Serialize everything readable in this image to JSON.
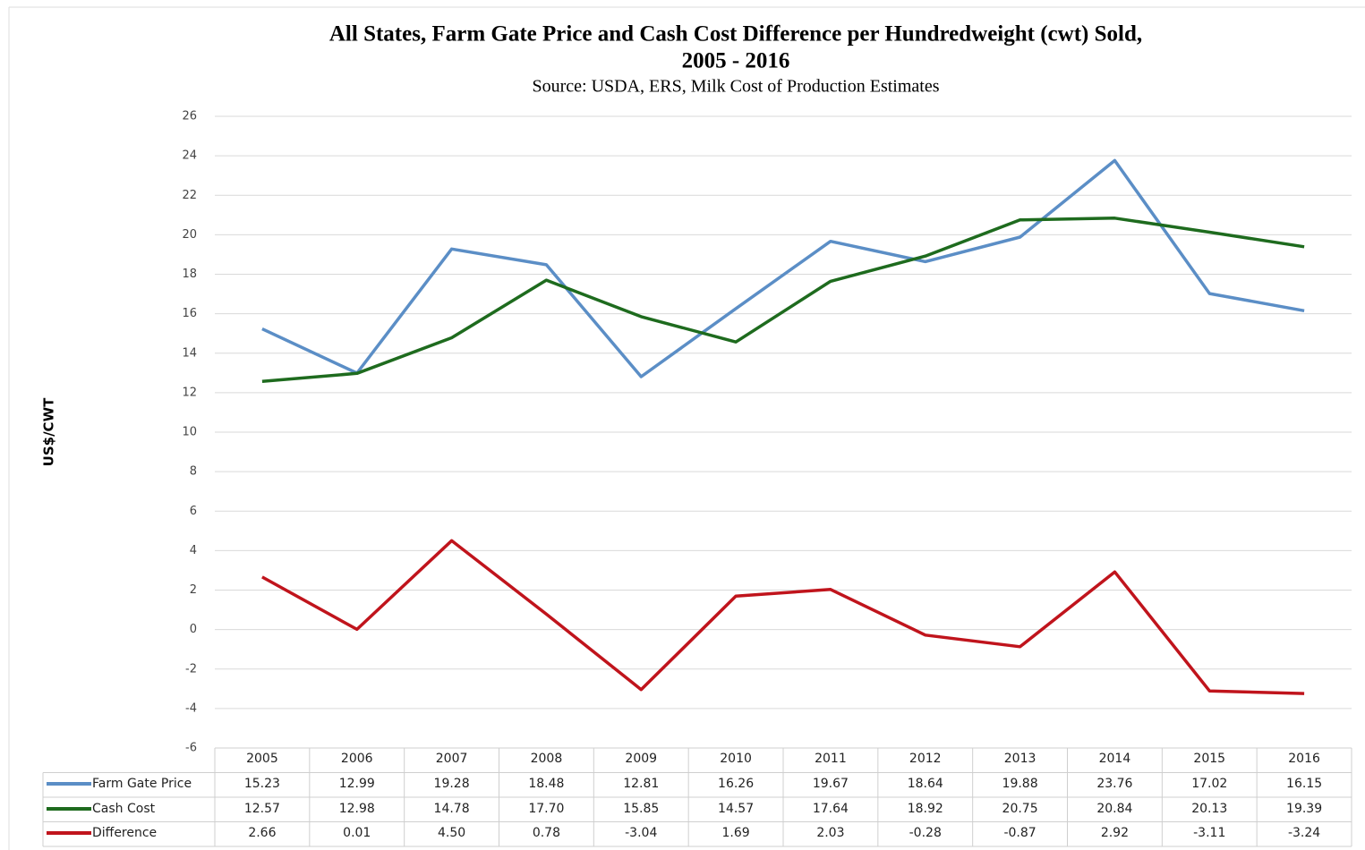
{
  "chart_data": {
    "type": "line",
    "title": [
      "All States, Farm Gate Price and Cash Cost Difference per Hundredweight (cwt) Sold,",
      "2005 - 2016"
    ],
    "subtitle": "Source: USDA, ERS, Milk Cost of Production Estimates",
    "y_axis_label": "US$/CWT",
    "categories": [
      "2005",
      "2006",
      "2007",
      "2008",
      "2009",
      "2010",
      "2011",
      "2012",
      "2013",
      "2014",
      "2015",
      "2016"
    ],
    "series": [
      {
        "name": "Farm Gate Price",
        "color": "#5b8ec6",
        "values": [
          15.23,
          12.99,
          19.28,
          18.48,
          12.81,
          16.26,
          19.67,
          18.64,
          19.88,
          23.76,
          17.02,
          16.15
        ],
        "value_labels": [
          "15.23",
          "12.99",
          "19.28",
          "18.48",
          "12.81",
          "16.26",
          "19.67",
          "18.64",
          "19.88",
          "23.76",
          "17.02",
          "16.15"
        ]
      },
      {
        "name": "Cash Cost",
        "color": "#1e6b1e",
        "values": [
          12.57,
          12.98,
          14.78,
          17.7,
          15.85,
          14.57,
          17.64,
          18.92,
          20.75,
          20.84,
          20.13,
          19.39
        ],
        "value_labels": [
          "12.57",
          "12.98",
          "14.78",
          "17.70",
          "15.85",
          "14.57",
          "17.64",
          "18.92",
          "20.75",
          "20.84",
          "20.13",
          "19.39"
        ]
      },
      {
        "name": "Difference",
        "color": "#c0141c",
        "values": [
          2.66,
          0.01,
          4.5,
          0.78,
          -3.04,
          1.69,
          2.03,
          -0.28,
          -0.87,
          2.92,
          -3.11,
          -3.24
        ],
        "value_labels": [
          "2.66",
          "0.01",
          "4.50",
          "0.78",
          "-3.04",
          "1.69",
          "2.03",
          "-0.28",
          "-0.87",
          "2.92",
          "-3.11",
          "-3.24"
        ]
      }
    ],
    "ylim": [
      -6,
      26
    ],
    "yticks": [
      -6,
      -4,
      -2,
      0,
      2,
      4,
      6,
      8,
      10,
      12,
      14,
      16,
      18,
      20,
      22,
      24,
      26
    ],
    "grid": true
  }
}
